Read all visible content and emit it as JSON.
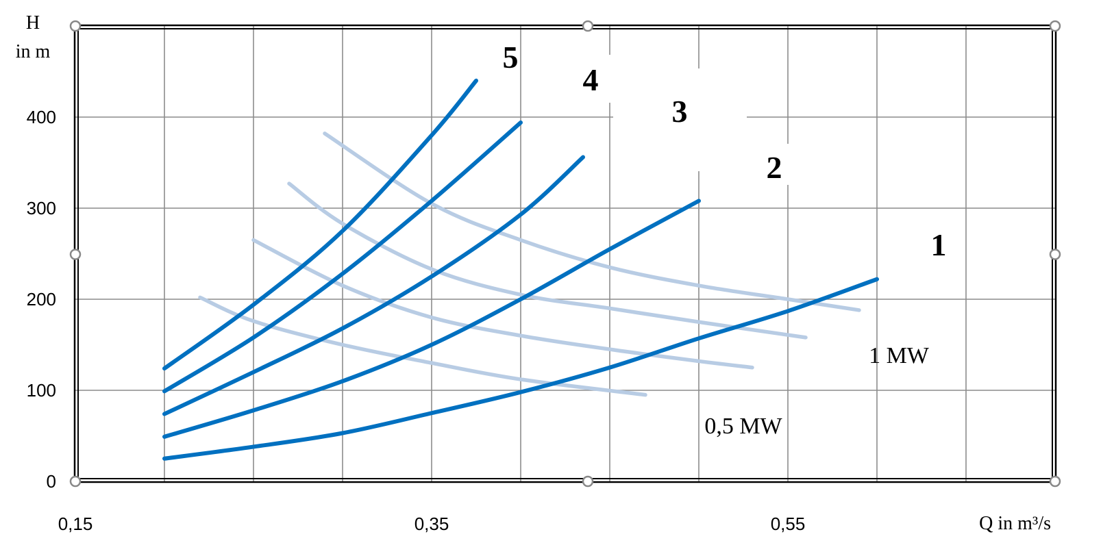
{
  "chart_data": {
    "type": "line",
    "title": "",
    "xlabel": "Q in m³/s",
    "ylabel": "H",
    "ylabel_unit": "in m",
    "xlim": [
      0.15,
      0.7
    ],
    "ylim": [
      0,
      500
    ],
    "x_ticks": [
      "0,15",
      "0,35",
      "0,55"
    ],
    "y_ticks": [
      "0",
      "100",
      "200",
      "300",
      "400"
    ],
    "grid": true,
    "series": [
      {
        "name": "1",
        "color": "#0070C0",
        "x": [
          0.2,
          0.25,
          0.3,
          0.35,
          0.4,
          0.45,
          0.5,
          0.55,
          0.6
        ],
        "y": [
          25,
          38,
          53,
          75,
          98,
          125,
          157,
          187,
          222
        ]
      },
      {
        "name": "2",
        "color": "#0070C0",
        "x": [
          0.2,
          0.25,
          0.3,
          0.35,
          0.4,
          0.45,
          0.5
        ],
        "y": [
          49,
          78,
          110,
          150,
          200,
          255,
          308
        ]
      },
      {
        "name": "3",
        "color": "#0070C0",
        "x": [
          0.2,
          0.25,
          0.3,
          0.35,
          0.4,
          0.435
        ],
        "y": [
          74,
          120,
          168,
          225,
          293,
          356
        ]
      },
      {
        "name": "4",
        "color": "#0070C0",
        "x": [
          0.2,
          0.25,
          0.3,
          0.35,
          0.4
        ],
        "y": [
          99,
          158,
          228,
          308,
          394
        ]
      },
      {
        "name": "5",
        "color": "#0070C0",
        "x": [
          0.2,
          0.25,
          0.3,
          0.35,
          0.375
        ],
        "y": [
          124,
          194,
          275,
          380,
          440
        ]
      },
      {
        "name": "0,5 MW",
        "color": "#B8CCE4",
        "x": [
          0.22,
          0.25,
          0.3,
          0.35,
          0.4,
          0.47
        ],
        "y": [
          202,
          176,
          150,
          130,
          112,
          95
        ]
      },
      {
        "color": "#B8CCE4",
        "x": [
          0.25,
          0.3,
          0.35,
          0.4,
          0.45,
          0.5,
          0.53
        ],
        "y": [
          265,
          215,
          180,
          160,
          145,
          132,
          125
        ]
      },
      {
        "color": "#B8CCE4",
        "x": [
          0.27,
          0.3,
          0.35,
          0.4,
          0.45,
          0.5,
          0.56
        ],
        "y": [
          327,
          283,
          233,
          205,
          190,
          175,
          158
        ]
      },
      {
        "name": "1 MW",
        "color": "#B8CCE4",
        "x": [
          0.29,
          0.35,
          0.4,
          0.45,
          0.5,
          0.55,
          0.59
        ],
        "y": [
          382,
          305,
          265,
          235,
          215,
          200,
          188
        ]
      }
    ],
    "curve_labels": [
      "1",
      "2",
      "3",
      "4",
      "5"
    ],
    "power_labels": [
      "0,5 MW",
      "1 MW"
    ]
  }
}
